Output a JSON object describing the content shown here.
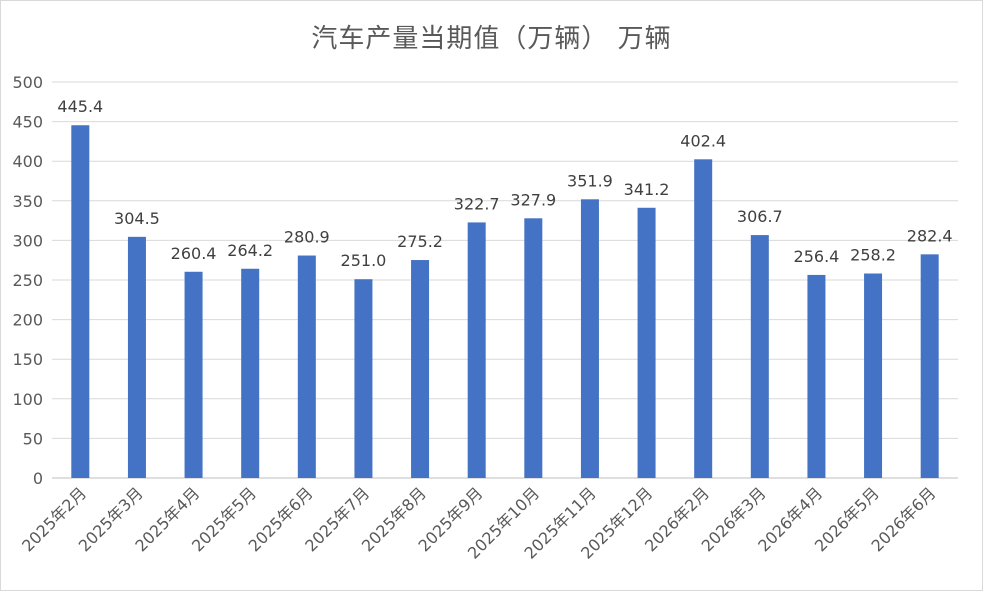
{
  "chart_data": {
    "type": "bar",
    "title": "汽车产量当期值（万辆） 万辆",
    "xlabel": "",
    "ylabel": "",
    "ylim": [
      0,
      500
    ],
    "yticks": [
      0,
      50,
      100,
      150,
      200,
      250,
      300,
      350,
      400,
      450,
      500
    ],
    "grid": true,
    "legend": "none",
    "bar_color": "#4472c4",
    "categories": [
      "2025年2月",
      "2025年3月",
      "2025年4月",
      "2025年5月",
      "2025年6月",
      "2025年7月",
      "2025年8月",
      "2025年9月",
      "2025年10月",
      "2025年11月",
      "2025年12月",
      "2026年2月",
      "2026年3月",
      "2026年4月",
      "2026年5月",
      "2026年6月"
    ],
    "values": [
      445.4,
      304.5,
      260.4,
      264.2,
      280.9,
      251.0,
      275.2,
      322.7,
      327.9,
      351.9,
      341.2,
      402.4,
      306.7,
      256.4,
      258.2,
      282.4
    ],
    "data_labels": [
      "445.4",
      "304.5",
      "260.4",
      "264.2",
      "280.9",
      "251.0",
      "275.2",
      "322.7",
      "327.9",
      "351.9",
      "341.2",
      "402.4",
      "306.7",
      "256.4",
      "258.2",
      "282.4"
    ]
  }
}
